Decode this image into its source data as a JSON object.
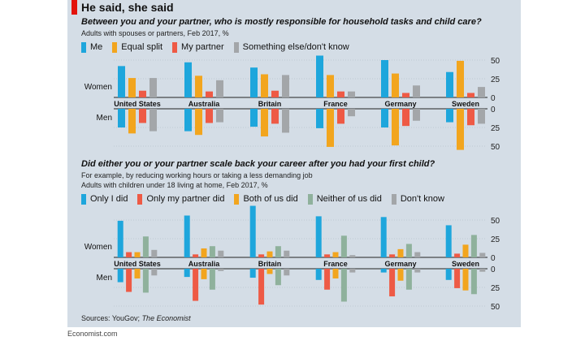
{
  "header": {
    "title": "He said, she said"
  },
  "source": {
    "prefix": "Sources: YouGov; ",
    "italic": "The Economist"
  },
  "brand": "Economist.com",
  "panels": [
    {
      "question": "Between you and your partner, who is mostly responsible for household tasks and child care?",
      "subtitle_lines": [
        "Adults with spouses or partners, Feb 2017, %"
      ],
      "legend": [
        {
          "label": "Me",
          "color": "#1ea6dc"
        },
        {
          "label": "Equal split",
          "color": "#f2a51e"
        },
        {
          "label": "My partner",
          "color": "#ee5a45"
        },
        {
          "label": "Something else/don't know",
          "color": "#a3a6a9"
        }
      ]
    },
    {
      "question": "Did either you or your partner scale back your career after you had your first child?",
      "subtitle_lines": [
        "For example, by reducing working hours or taking a less demanding job",
        "Adults with children under 18 living at home, Feb 2017, %"
      ],
      "legend": [
        {
          "label": "Only I did",
          "color": "#1ea6dc"
        },
        {
          "label": "Only my partner did",
          "color": "#ee5a45"
        },
        {
          "label": "Both of us did",
          "color": "#f2a51e"
        },
        {
          "label": "Neither of us did",
          "color": "#8fb19c"
        },
        {
          "label": "Don't know",
          "color": "#a3a6a9"
        }
      ]
    }
  ],
  "chart_data": [
    {
      "type": "bar",
      "title": "Between you and your partner, who is mostly responsible for household tasks and child care?",
      "categories": [
        "United States",
        "Australia",
        "Britain",
        "France",
        "Germany",
        "Sweden"
      ],
      "row_labels": [
        "Women",
        "Men"
      ],
      "ylim": [
        0,
        50
      ],
      "yticks": [
        0,
        25,
        50
      ],
      "series": [
        {
          "name": "Me",
          "women": [
            42,
            47,
            40,
            56,
            50,
            34
          ],
          "men": [
            25,
            30,
            24,
            26,
            25,
            18
          ]
        },
        {
          "name": "Equal split",
          "women": [
            26,
            29,
            31,
            30,
            32,
            49
          ],
          "men": [
            33,
            35,
            37,
            51,
            49,
            55
          ]
        },
        {
          "name": "My partner",
          "women": [
            9,
            8,
            9,
            8,
            6,
            6
          ],
          "men": [
            19,
            19,
            20,
            20,
            23,
            22
          ]
        },
        {
          "name": "Something else/don't know",
          "women": [
            26,
            23,
            30,
            8,
            16,
            14
          ],
          "men": [
            30,
            18,
            32,
            10,
            16,
            20
          ]
        }
      ]
    },
    {
      "type": "bar",
      "title": "Did either you or your partner scale back your career after you had your first child?",
      "categories": [
        "United States",
        "Australia",
        "Britain",
        "France",
        "Germany",
        "Sweden"
      ],
      "row_labels": [
        "Women",
        "Men"
      ],
      "ylim": [
        0,
        50
      ],
      "yticks": [
        0,
        25,
        50
      ],
      "series": [
        {
          "name": "Only I did",
          "women": [
            49,
            56,
            69,
            55,
            54,
            43
          ],
          "men": [
            18,
            11,
            12,
            15,
            5,
            15
          ]
        },
        {
          "name": "Only my partner did",
          "women": [
            7,
            4,
            4,
            4,
            4,
            5
          ],
          "men": [
            31,
            43,
            48,
            28,
            37,
            26
          ]
        },
        {
          "name": "Both of us did",
          "women": [
            7,
            12,
            8,
            7,
            11,
            17
          ],
          "men": [
            13,
            14,
            7,
            13,
            16,
            29
          ]
        },
        {
          "name": "Neither of us did",
          "women": [
            28,
            15,
            15,
            29,
            18,
            30
          ],
          "men": [
            32,
            28,
            22,
            44,
            28,
            34
          ]
        },
        {
          "name": "Don't know",
          "women": [
            10,
            9,
            9,
            3,
            7,
            6
          ],
          "men": [
            9,
            3,
            9,
            5,
            5,
            4
          ]
        }
      ]
    }
  ]
}
